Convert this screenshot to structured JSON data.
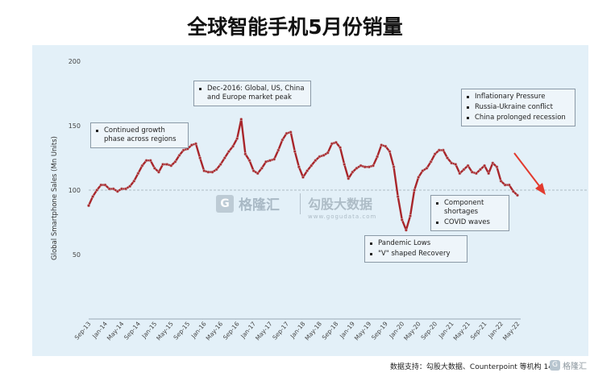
{
  "page": {
    "title": "全球智能手机5月份销量",
    "footer": "数据支持：勾股大数据、Counterpoint 等机构 14",
    "watermark_left": "格隆汇",
    "watermark_right": "勾股大数据",
    "watermark_right_url": "www.gogudata.com",
    "footer_logo": "格隆汇"
  },
  "annotations": {
    "growth": [
      "Continued growth phase across regions"
    ],
    "peak": [
      "Dec-2016: Global, US, China and Europe market peak"
    ],
    "recent": [
      "Inflationary Pressure",
      "Russia-Ukraine conflict",
      "China prolonged recession"
    ],
    "component": [
      "Component shortages",
      "COVID waves"
    ],
    "pandemic": [
      "Pandemic Lows",
      "\"V\" shaped Recovery"
    ]
  },
  "colors": {
    "line": "#a8262b",
    "marker_edge": "#c9a3a5",
    "arrow": "#e23a2e",
    "reference_line": "#9aa9b4"
  },
  "chart_data": {
    "type": "line",
    "ylabel": "Global Smartphone Sales (Mn Units)",
    "ylim": [
      0,
      200
    ],
    "yticks": [
      50,
      100,
      150,
      200
    ],
    "reference_line": 100,
    "x_tick_labels": [
      "Sep-13",
      "Jan-14",
      "May-14",
      "Sep-14",
      "Jan-15",
      "May-15",
      "Sep-15",
      "Jan-16",
      "May-16",
      "Sep-16",
      "Jan-17",
      "May-17",
      "Sep-17",
      "Jan-18",
      "May-18",
      "Sep-18",
      "Jan-19",
      "May-19",
      "Sep-19",
      "Jan-20",
      "May-20",
      "Sep-20",
      "Jan-21",
      "May-21",
      "Sep-21",
      "Jan-22",
      "May-22"
    ],
    "series": [
      {
        "values": [
          88,
          95,
          100,
          104,
          104,
          101,
          101,
          99,
          101,
          101,
          103,
          107,
          113,
          119,
          123,
          123,
          117,
          114,
          120,
          120,
          119,
          122,
          127,
          131,
          132,
          135,
          136,
          125,
          115,
          114,
          114,
          116,
          120,
          125,
          130,
          134,
          140,
          155,
          128,
          123,
          115,
          113,
          117,
          122,
          123,
          124,
          131,
          139,
          144,
          145,
          130,
          118,
          110,
          115,
          119,
          123,
          126,
          127,
          129,
          136,
          137,
          133,
          120,
          109,
          114,
          117,
          119,
          118,
          118,
          119,
          126,
          135,
          134,
          130,
          118,
          95,
          77,
          69,
          80,
          100,
          110,
          115,
          117,
          122,
          128,
          131,
          131,
          125,
          121,
          120,
          113,
          116,
          119,
          114,
          113,
          116,
          119,
          113,
          121,
          118,
          107,
          104,
          104,
          99,
          96
        ]
      }
    ]
  }
}
